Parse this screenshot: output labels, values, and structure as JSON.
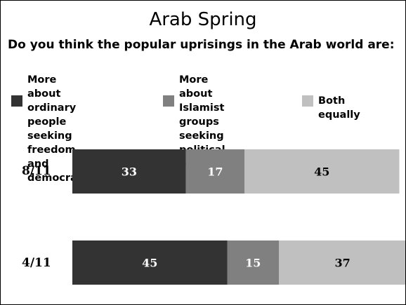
{
  "chart_data": {
    "type": "bar",
    "orientation": "horizontal",
    "stacked": true,
    "title": "Arab Spring",
    "subtitle": "Do you think the popular uprisings in the Arab world are:",
    "categories": [
      "8/11",
      "4/11"
    ],
    "series": [
      {
        "name": "More about ordinary people seeking freedom and democracy",
        "color": "#333333",
        "label_color": "#ffffff",
        "values": [
          33,
          45
        ]
      },
      {
        "name": "More about Islamist groups seeking political power",
        "color": "#808080",
        "label_color": "#ffffff",
        "values": [
          17,
          15
        ]
      },
      {
        "name": "Both equally",
        "color": "#c0c0c0",
        "label_color": "#000000",
        "values": [
          45,
          37
        ]
      }
    ],
    "legend_position": "top",
    "grid": false
  },
  "legend": [
    {
      "text": "More about ordinary\npeople seeking\nfreedom and\ndemocracy"
    },
    {
      "text": "More about\nIslamist groups\nseeking political\npower"
    },
    {
      "text": "Both equally"
    }
  ]
}
